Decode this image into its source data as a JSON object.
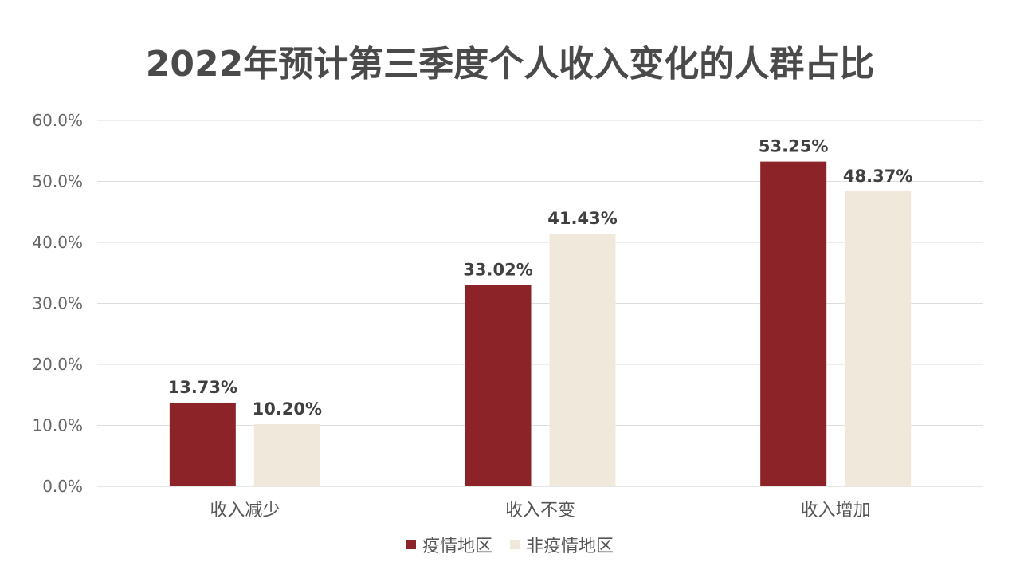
{
  "chart_data": {
    "type": "bar",
    "title": "2022年预计第三季度个人收入变化的人群占比",
    "categories": [
      "收入减少",
      "收入不变",
      "收入增加"
    ],
    "series": [
      {
        "name": "疫情地区",
        "values": [
          13.73,
          33.02,
          53.25
        ],
        "labels": [
          "13.73%",
          "33.02%",
          "53.25%"
        ],
        "color": "#8B2329"
      },
      {
        "name": "非疫情地区",
        "values": [
          10.2,
          41.43,
          48.37
        ],
        "labels": [
          "10.20%",
          "41.43%",
          "48.37%"
        ],
        "color": "#F1E8DC"
      }
    ],
    "ylim": [
      0,
      60
    ],
    "y_ticks": [
      "0.0%",
      "10.0%",
      "20.0%",
      "30.0%",
      "40.0%",
      "50.0%",
      "60.0%"
    ],
    "grid": true,
    "legend_position": "bottom-center",
    "xlabel": "",
    "ylabel": ""
  }
}
